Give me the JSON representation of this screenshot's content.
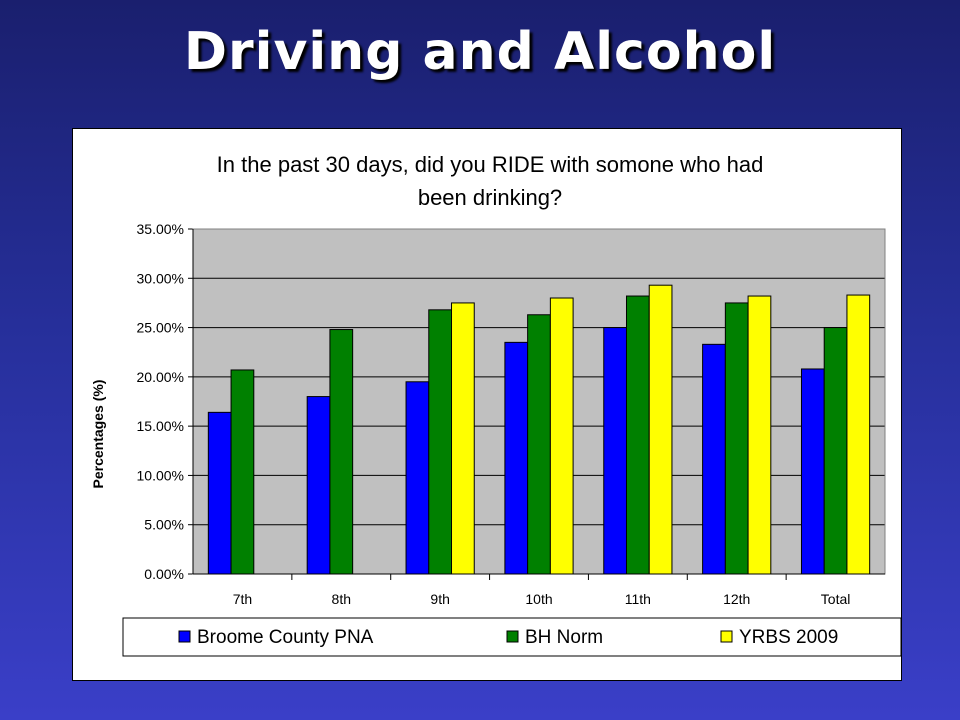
{
  "slide": {
    "title": "Driving and Alcohol"
  },
  "chart_data": {
    "type": "bar",
    "title_lines": [
      "In the past 30 days, did you RIDE with somone who had",
      "been drinking?"
    ],
    "ylabel": "Percentages (%)",
    "xlabel": "",
    "categories": [
      "7th",
      "8th",
      "9th",
      "10th",
      "11th",
      "12th",
      "Total"
    ],
    "ylim": [
      0,
      35
    ],
    "yticks": [
      0,
      5,
      10,
      15,
      20,
      25,
      30,
      35
    ],
    "ytick_labels": [
      "0.00%",
      "5.00%",
      "10.00%",
      "15.00%",
      "20.00%",
      "25.00%",
      "30.00%",
      "35.00%"
    ],
    "grid": true,
    "legend_position": "bottom",
    "plot_background": "#c0c0c0",
    "series": [
      {
        "name": "Broome County PNA",
        "color": "#0000ff",
        "values": [
          16.4,
          18.0,
          19.5,
          23.5,
          25.0,
          23.3,
          20.8
        ]
      },
      {
        "name": "BH Norm",
        "color": "#008000",
        "values": [
          20.7,
          24.8,
          26.8,
          26.3,
          28.2,
          27.5,
          25.0
        ]
      },
      {
        "name": "YRBS 2009",
        "color": "#ffff00",
        "values": [
          null,
          null,
          27.5,
          28.0,
          29.3,
          28.2,
          28.3
        ]
      }
    ]
  }
}
